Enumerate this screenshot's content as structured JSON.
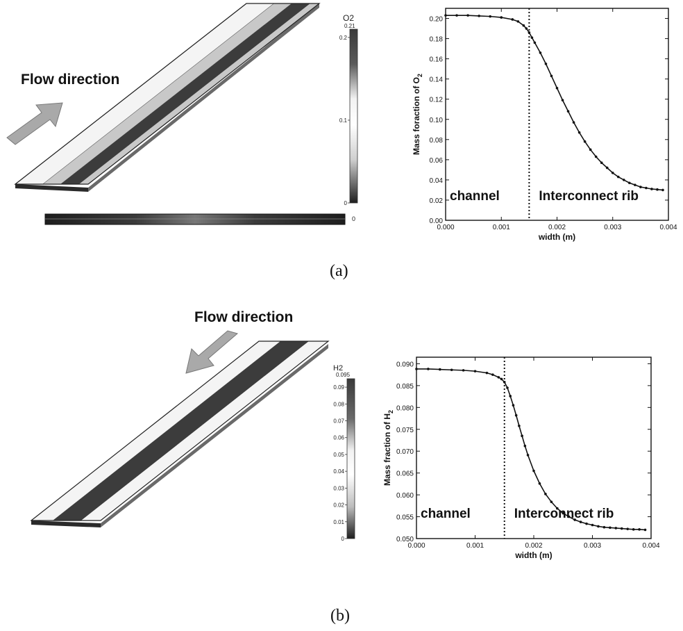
{
  "figure": {
    "caption_a": "(a)",
    "caption_b": "(b)"
  },
  "panel_a": {
    "flow_label": "Flow direction",
    "legend": {
      "title": "O2",
      "max_label": "0.21",
      "ticks": [
        {
          "label": "0.2",
          "value": 0.2
        },
        {
          "label": "0.1",
          "value": 0.1
        },
        {
          "label": "0",
          "value": 0.0
        }
      ],
      "min_label": "0",
      "max_value": 0.21
    },
    "colors": {
      "light": "#f2f2f2",
      "mid": "#c9c9c9",
      "dark": "#3c3c3c",
      "arrow": "#a9a9a9"
    }
  },
  "panel_b": {
    "flow_label": "Flow direction",
    "legend": {
      "title": "H2",
      "max_label": "0.095",
      "ticks": [
        {
          "label": "0.09",
          "value": 0.09
        },
        {
          "label": "0.08",
          "value": 0.08
        },
        {
          "label": "0.07",
          "value": 0.07
        },
        {
          "label": "0.06",
          "value": 0.06
        },
        {
          "label": "0.05",
          "value": 0.05
        },
        {
          "label": "0.04",
          "value": 0.04
        },
        {
          "label": "0.03",
          "value": 0.03
        },
        {
          "label": "0.02",
          "value": 0.02
        },
        {
          "label": "0.01",
          "value": 0.01
        },
        {
          "label": "0",
          "value": 0.0
        }
      ],
      "min_label": "0",
      "max_value": 0.095
    },
    "colors": {
      "light": "#f2f2f2",
      "mid": "#c9c9c9",
      "dark": "#3c3c3c",
      "arrow": "#a9a9a9"
    }
  },
  "chart_data": [
    {
      "type": "scatter",
      "id": "chart-a",
      "xlabel": "width (m)",
      "ylabel": "Mass foraction of O",
      "ylabel_sub": "2",
      "xlim": [
        0,
        0.004
      ],
      "ylim": [
        0,
        0.21
      ],
      "xticks": [
        0,
        0.001,
        0.002,
        0.003,
        0.004
      ],
      "xtick_labels": [
        "0.000",
        "0.001",
        "0.002",
        "0.003",
        "0.004"
      ],
      "yticks": [
        0,
        0.02,
        0.04,
        0.06,
        0.08,
        0.1,
        0.12,
        0.14,
        0.16,
        0.18,
        0.2
      ],
      "ytick_labels": [
        "0.00",
        "0.02",
        "0.04",
        "0.06",
        "0.08",
        "0.10",
        "0.12",
        "0.14",
        "0.16",
        "0.18",
        "0.20"
      ],
      "boundary_x": 0.0015,
      "region_labels": [
        "channel",
        "Interconnect rib"
      ],
      "series": [
        {
          "x": [
            0,
            0.0002,
            0.0004,
            0.0006,
            0.0008,
            0.001,
            0.0012,
            0.0013,
            0.0014,
            0.00145,
            0.0015,
            0.00155,
            0.0016,
            0.0017,
            0.0018,
            0.0019,
            0.002,
            0.0021,
            0.0022,
            0.0023,
            0.0024,
            0.0025,
            0.0026,
            0.0027,
            0.0028,
            0.0029,
            0.003,
            0.0031,
            0.0032,
            0.0033,
            0.0034,
            0.0035,
            0.0036,
            0.0037,
            0.0038,
            0.0039
          ],
          "y": [
            0.203,
            0.203,
            0.203,
            0.2025,
            0.202,
            0.201,
            0.199,
            0.197,
            0.193,
            0.19,
            0.186,
            0.181,
            0.176,
            0.166,
            0.155,
            0.143,
            0.131,
            0.119,
            0.108,
            0.097,
            0.087,
            0.078,
            0.07,
            0.063,
            0.057,
            0.052,
            0.047,
            0.043,
            0.04,
            0.037,
            0.035,
            0.033,
            0.032,
            0.031,
            0.0305,
            0.03
          ]
        }
      ]
    },
    {
      "type": "scatter",
      "id": "chart-b",
      "xlabel": "width (m)",
      "ylabel": "Mass fraction of H",
      "ylabel_sub": "2",
      "xlim": [
        0,
        0.004
      ],
      "ylim": [
        0.05,
        0.0915
      ],
      "xticks": [
        0,
        0.001,
        0.002,
        0.003,
        0.004
      ],
      "xtick_labels": [
        "0.000",
        "0.001",
        "0.002",
        "0.003",
        "0.004"
      ],
      "yticks": [
        0.05,
        0.055,
        0.06,
        0.065,
        0.07,
        0.075,
        0.08,
        0.085,
        0.09
      ],
      "ytick_labels": [
        "0.050",
        "0.055",
        "0.060",
        "0.065",
        "0.070",
        "0.075",
        "0.080",
        "0.085",
        "0.090"
      ],
      "boundary_x": 0.0015,
      "region_labels": [
        "channel",
        "Interconnect rib"
      ],
      "series": [
        {
          "x": [
            0,
            0.0002,
            0.0004,
            0.0006,
            0.0008,
            0.001,
            0.0012,
            0.0013,
            0.0014,
            0.00145,
            0.0015,
            0.00155,
            0.0016,
            0.00165,
            0.0017,
            0.00175,
            0.0018,
            0.00185,
            0.0019,
            0.002,
            0.0021,
            0.0022,
            0.0023,
            0.0024,
            0.0025,
            0.0026,
            0.0027,
            0.0028,
            0.0029,
            0.003,
            0.0031,
            0.0032,
            0.0033,
            0.0034,
            0.0035,
            0.0036,
            0.0037,
            0.0038,
            0.0039
          ],
          "y": [
            0.0888,
            0.0888,
            0.0887,
            0.0886,
            0.0885,
            0.0883,
            0.0879,
            0.0875,
            0.0869,
            0.0865,
            0.0858,
            0.0845,
            0.0826,
            0.0805,
            0.0782,
            0.0758,
            0.0735,
            0.0712,
            0.0691,
            0.0655,
            0.0626,
            0.0602,
            0.0584,
            0.0569,
            0.0558,
            0.055,
            0.0543,
            0.0538,
            0.0534,
            0.0531,
            0.0528,
            0.0526,
            0.0525,
            0.0524,
            0.0523,
            0.0522,
            0.0521,
            0.0521,
            0.052
          ]
        }
      ]
    }
  ]
}
